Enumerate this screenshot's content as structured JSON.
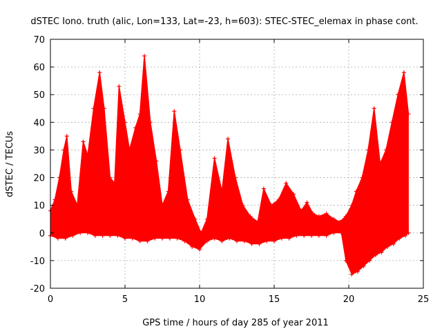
{
  "chart_data": {
    "type": "line",
    "title": "dSTEC Iono. truth (alic, Lon=133, Lat=-23, h=603): STEC-STEC_elemax in phase cont.",
    "xlabel": "GPS time / hours of day 285 of year 2011",
    "ylabel": "dSTEC  / TECUs",
    "xlim": [
      0,
      25
    ],
    "ylim": [
      -20,
      70
    ],
    "x_ticks": [
      "0",
      "5",
      "10",
      "15",
      "20",
      "25"
    ],
    "y_ticks": [
      "-20",
      "-10",
      "0",
      "10",
      "20",
      "30",
      "40",
      "50",
      "60",
      "70"
    ],
    "grid": true,
    "legend": "none",
    "series_color": "#ff0000",
    "marker": "plus",
    "series": [
      {
        "points": [
          [
            0.0,
            8
          ],
          [
            0.3,
            12
          ],
          [
            0.6,
            20
          ],
          [
            0.9,
            30
          ],
          [
            1.1,
            35
          ],
          [
            1.4,
            15
          ],
          [
            1.8,
            10
          ],
          [
            2.2,
            33
          ],
          [
            2.5,
            28
          ],
          [
            2.9,
            45
          ],
          [
            3.3,
            58
          ],
          [
            3.6,
            45
          ],
          [
            4.0,
            20
          ],
          [
            4.3,
            18
          ],
          [
            4.6,
            53
          ],
          [
            5.0,
            40
          ],
          [
            5.3,
            30
          ],
          [
            5.7,
            38
          ],
          [
            6.0,
            43
          ],
          [
            6.3,
            64
          ],
          [
            6.7,
            40
          ],
          [
            7.1,
            26
          ],
          [
            7.5,
            10
          ],
          [
            7.9,
            15
          ],
          [
            8.3,
            44
          ],
          [
            8.7,
            30
          ],
          [
            9.2,
            12
          ],
          [
            9.7,
            5
          ],
          [
            10.1,
            0
          ],
          [
            10.5,
            5
          ],
          [
            11.0,
            27
          ],
          [
            11.5,
            15
          ],
          [
            11.9,
            34
          ],
          [
            12.4,
            20
          ],
          [
            12.9,
            10
          ],
          [
            13.4,
            6
          ],
          [
            13.9,
            4
          ],
          [
            14.3,
            16
          ],
          [
            14.8,
            10
          ],
          [
            15.3,
            12
          ],
          [
            15.8,
            18
          ],
          [
            16.3,
            14
          ],
          [
            16.8,
            8
          ],
          [
            17.2,
            11
          ],
          [
            17.6,
            7
          ],
          [
            18.0,
            6
          ],
          [
            18.5,
            7
          ],
          [
            19.0,
            5
          ],
          [
            19.4,
            4
          ],
          [
            19.8,
            6
          ],
          [
            20.2,
            10
          ],
          [
            20.5,
            15
          ],
          [
            20.9,
            20
          ],
          [
            21.3,
            30
          ],
          [
            21.7,
            45
          ],
          [
            22.1,
            25
          ],
          [
            22.5,
            30
          ],
          [
            22.9,
            40
          ],
          [
            23.3,
            50
          ],
          [
            23.7,
            58
          ],
          [
            24.0,
            43
          ]
        ],
        "lower": [
          [
            0.0,
            -1
          ],
          [
            0.5,
            -2
          ],
          [
            1.0,
            -2
          ],
          [
            1.5,
            -1
          ],
          [
            2.0,
            0
          ],
          [
            2.5,
            0
          ],
          [
            3.0,
            -1
          ],
          [
            3.5,
            -1
          ],
          [
            4.0,
            -1
          ],
          [
            4.5,
            -1
          ],
          [
            5.0,
            -2
          ],
          [
            5.5,
            -2
          ],
          [
            6.0,
            -3
          ],
          [
            6.5,
            -3
          ],
          [
            7.0,
            -2
          ],
          [
            7.5,
            -2
          ],
          [
            8.0,
            -2
          ],
          [
            8.5,
            -2
          ],
          [
            9.0,
            -3
          ],
          [
            9.5,
            -5
          ],
          [
            10.0,
            -6
          ],
          [
            10.5,
            -3
          ],
          [
            11.0,
            -2
          ],
          [
            11.5,
            -3
          ],
          [
            12.0,
            -2
          ],
          [
            12.5,
            -3
          ],
          [
            13.0,
            -3
          ],
          [
            13.5,
            -4
          ],
          [
            14.0,
            -4
          ],
          [
            14.5,
            -3
          ],
          [
            15.0,
            -3
          ],
          [
            15.5,
            -2
          ],
          [
            16.0,
            -2
          ],
          [
            16.5,
            -1
          ],
          [
            17.0,
            -1
          ],
          [
            17.5,
            -1
          ],
          [
            18.0,
            -1
          ],
          [
            18.5,
            -1
          ],
          [
            19.0,
            0
          ],
          [
            19.5,
            0
          ],
          [
            19.8,
            -10
          ],
          [
            20.2,
            -15
          ],
          [
            20.6,
            -14
          ],
          [
            21.0,
            -12
          ],
          [
            21.4,
            -10
          ],
          [
            21.8,
            -8
          ],
          [
            22.2,
            -7
          ],
          [
            22.6,
            -5
          ],
          [
            23.0,
            -4
          ],
          [
            23.4,
            -2
          ],
          [
            23.8,
            -1
          ],
          [
            24.0,
            0
          ]
        ]
      }
    ]
  }
}
